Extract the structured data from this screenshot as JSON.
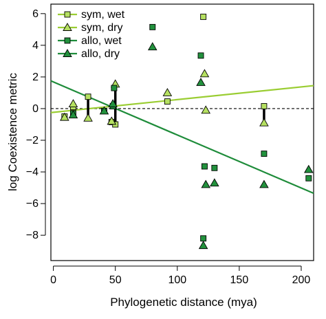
{
  "chart_data": {
    "type": "scatter",
    "xlabel": "Phylogenetic distance (mya)",
    "ylabel": "log Coexistence metric",
    "xlim": [
      -2,
      210
    ],
    "ylim": [
      -9.6,
      6.6
    ],
    "xticks": [
      0,
      50,
      100,
      150,
      200
    ],
    "yticks": [
      -8,
      -6,
      -4,
      -2,
      0,
      2,
      4,
      6
    ],
    "xtick_labels": [
      "0",
      "50",
      "100",
      "150",
      "200"
    ],
    "ytick_labels": [
      "−8",
      "−6",
      "−4",
      "−2",
      "0",
      "2",
      "4",
      "6"
    ],
    "reference_line_y": 0,
    "legend_position": "top-left",
    "legend": [
      "sym, wet",
      "sym, dry",
      "allo, wet",
      "allo, dry"
    ],
    "colors": {
      "sym": "#b5e061",
      "sym_line": "#9acd32",
      "allo": "#22913d",
      "allo_line": "#1e8c3a",
      "outline": "#000000"
    },
    "series": [
      {
        "group": "sym",
        "condition": "wet",
        "marker": "square",
        "x": [
          9,
          16,
          28,
          47,
          50,
          92,
          121,
          170
        ],
        "y": [
          -0.5,
          0.1,
          0.75,
          -0.85,
          -1.0,
          0.45,
          5.8,
          0.15
        ]
      },
      {
        "group": "sym",
        "condition": "dry",
        "marker": "triangle",
        "x": [
          9,
          16,
          28,
          47,
          50,
          92,
          122,
          123,
          170
        ],
        "y": [
          -0.55,
          0.3,
          -0.6,
          -0.8,
          1.55,
          1.0,
          2.2,
          -0.1,
          -0.9
        ]
      },
      {
        "group": "allo",
        "condition": "wet",
        "marker": "square",
        "x": [
          16,
          41,
          48,
          49,
          80,
          119,
          121,
          122,
          130,
          170,
          206
        ],
        "y": [
          -0.3,
          -0.15,
          0.15,
          1.3,
          5.15,
          3.35,
          -8.2,
          -3.65,
          -3.75,
          -2.85,
          -4.4
        ]
      },
      {
        "group": "allo",
        "condition": "dry",
        "marker": "triangle",
        "x": [
          16,
          41,
          48,
          80,
          119,
          121,
          123,
          130,
          170,
          206
        ],
        "y": [
          -0.4,
          -0.15,
          0.3,
          3.9,
          1.65,
          -8.65,
          -4.8,
          -4.7,
          -4.8,
          -3.85
        ]
      }
    ],
    "fit_lines": [
      {
        "group": "sym",
        "x": [
          -2,
          210
        ],
        "y": [
          -0.25,
          1.45
        ]
      },
      {
        "group": "allo",
        "x": [
          -2,
          210
        ],
        "y": [
          1.75,
          -5.35
        ]
      }
    ],
    "connectors": [
      {
        "x": 28,
        "y": [
          0.75,
          -0.6
        ]
      },
      {
        "x": 50,
        "y": [
          1.5,
          -0.95
        ]
      },
      {
        "x": 170,
        "y": [
          0.15,
          -0.9
        ]
      }
    ]
  }
}
